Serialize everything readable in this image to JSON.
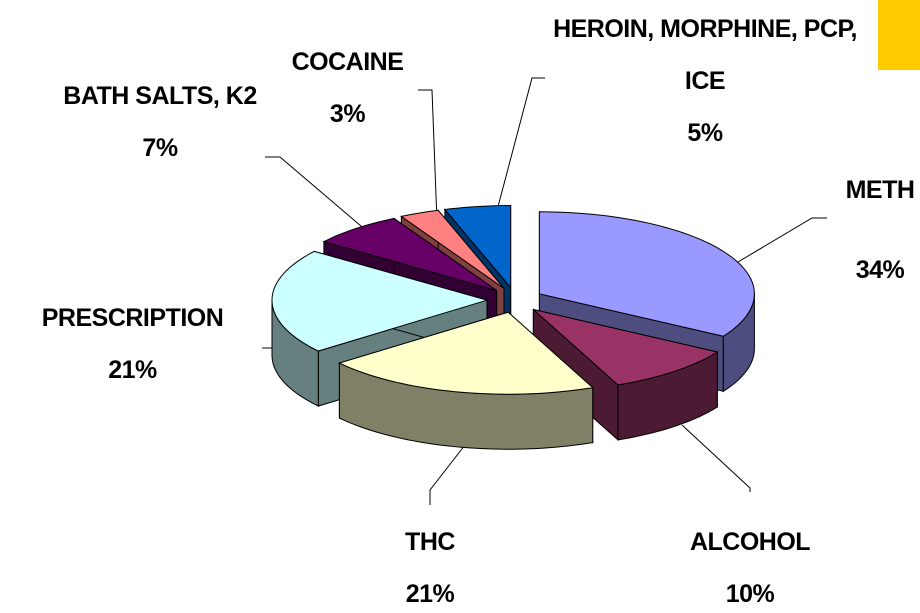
{
  "chart_data": {
    "type": "pie",
    "categories": [
      "METH",
      "ALCOHOL",
      "THC",
      "PRESCRIPTION",
      "BATH SALTS, K2",
      "COCAINE",
      "HEROIN, MORPHINE, PCP, ICE"
    ],
    "values": [
      34,
      10,
      21,
      21,
      7,
      3,
      5
    ],
    "value_labels": [
      "34%",
      "10%",
      "21%",
      "21%",
      "7%",
      "3%",
      "5%"
    ],
    "colors": [
      "#9999ff",
      "#993366",
      "#ffffcc",
      "#ccffff",
      "#660066",
      "#ff8080",
      "#0066cc"
    ]
  }
}
